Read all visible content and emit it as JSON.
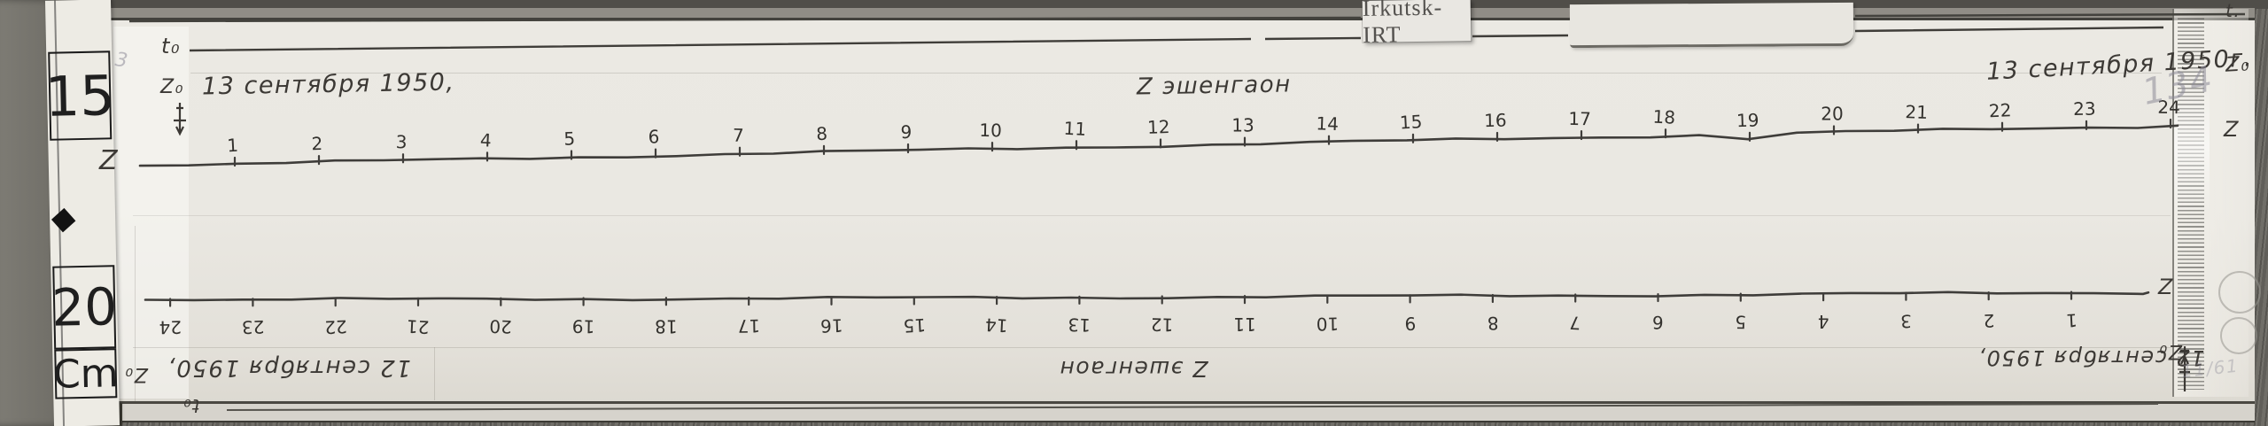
{
  "meta": {
    "station_label": "Irkutsk-IRT"
  },
  "ruler_card": {
    "top_value": "15",
    "bottom_value": "20",
    "unit": "Cm",
    "pencil_mark": "3"
  },
  "top_record": {
    "t0_label": "t₀",
    "t_end_label": "t.",
    "z0_label": "Z₀",
    "date_left": "13 сентября 1950,",
    "title_center": "Z эшенгаон",
    "date_right": "13 сентября 1950г.",
    "z0_right_label": "Z₀",
    "trace_start_label": "Z",
    "trace_end_label": "Z",
    "pencil_number": "134",
    "hour_labels": [
      "1",
      "2",
      "3",
      "4",
      "5",
      "6",
      "7",
      "8",
      "9",
      "10",
      "11",
      "12",
      "13",
      "14",
      "15",
      "16",
      "17",
      "18",
      "19",
      "20",
      "21",
      "22",
      "23",
      "24"
    ]
  },
  "bottom_record": {
    "date_left_inverted": "12 сентября 1950,",
    "z0_left_label": "Z₀",
    "t0_label": "t₀",
    "title_inverted": "Z эшенгаон",
    "date_right_inverted": "12 сентября 1950,",
    "z0_right_label": "Z₀",
    "trace_end_label": "Z",
    "pencil_note": "11/61",
    "hour_labels": [
      "1",
      "2",
      "3",
      "4",
      "5",
      "6",
      "7",
      "8",
      "9",
      "10",
      "11",
      "12",
      "13",
      "14",
      "15",
      "16",
      "17",
      "18",
      "19",
      "20",
      "21",
      "22",
      "23",
      "24"
    ]
  },
  "colors": {
    "ink": "#3f3d3a",
    "paper": "#eae8e2",
    "wood": "#6b6963",
    "pencil": "#8c8a98"
  },
  "chart_data": [
    {
      "type": "line",
      "title": "Z-component magnetogram baseline, 13 сентября 1950 (Irkutsk-IRT)",
      "x": [
        1,
        2,
        3,
        4,
        5,
        6,
        7,
        8,
        9,
        10,
        11,
        12,
        13,
        14,
        15,
        16,
        17,
        18,
        19,
        20,
        21,
        22,
        23,
        24
      ],
      "xlabel": "hour marks 1–24",
      "ylabel": "Z",
      "description": "Nearly flat hand-recorded trace with small hourly time ticks; gently rising to the right; no large deflections."
    },
    {
      "type": "line",
      "title": "Z-component magnetogram baseline, 12 сентября 1950 (mounted rotated 180°)",
      "x": [
        1,
        2,
        3,
        4,
        5,
        6,
        7,
        8,
        9,
        10,
        11,
        12,
        13,
        14,
        15,
        16,
        17,
        18,
        19,
        20,
        21,
        22,
        23,
        24
      ],
      "xlabel": "hour marks 24–1 (inverted)",
      "ylabel": "Z",
      "description": "Nearly flat trace with hourly ticks pointing down and upside-down numerals; hour 24 at left, hour 1 at right."
    }
  ]
}
